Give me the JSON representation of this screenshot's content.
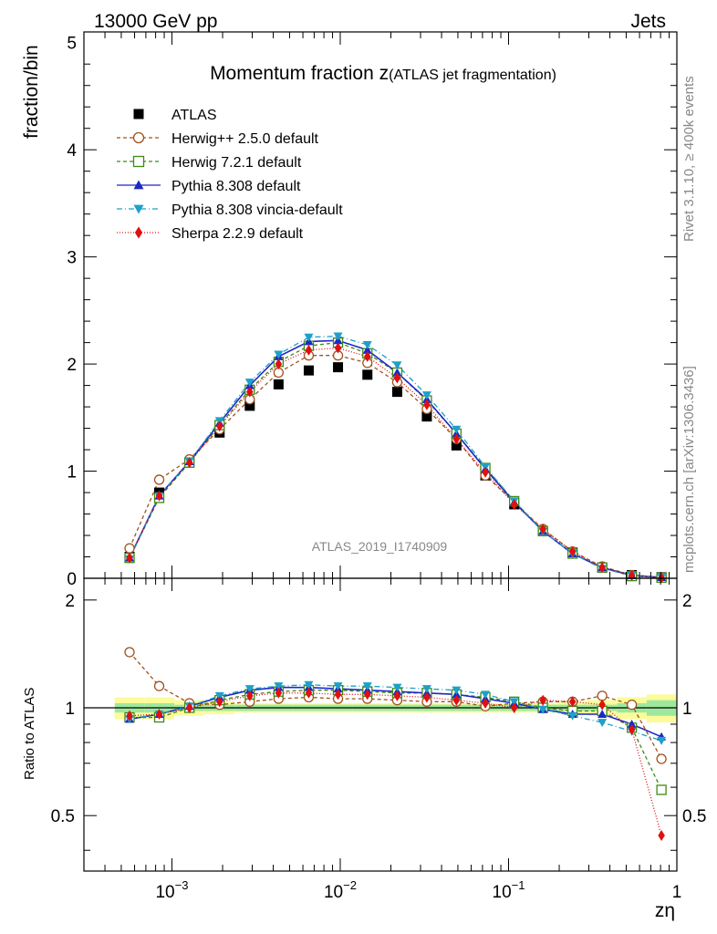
{
  "header": {
    "energy_label": "13000 GeV pp",
    "process_label": "Jets",
    "title_main": "Momentum fraction z",
    "title_sub": "(ATLAS jet fragmentation)",
    "analysis_id": "ATLAS_2019_I1740909",
    "rivet_label": "Rivet 3.1.10, ≥ 400k events",
    "mcplots_label": "mcplots.cern.ch [arXiv:1306.3436]"
  },
  "chart_data": {
    "type": "scatter",
    "xscale": "log",
    "xlim": [
      0.0003,
      1.0
    ],
    "xlabel": "zη",
    "x_tick_labels": [
      "10−3",
      "10−2",
      "10−1",
      "1"
    ],
    "x": [
      0.00056,
      0.00084,
      0.00127,
      0.00192,
      0.0029,
      0.0043,
      0.0065,
      0.0097,
      0.0145,
      0.0218,
      0.0327,
      0.049,
      0.0728,
      0.108,
      0.16,
      0.24,
      0.36,
      0.54,
      0.81
    ],
    "main": {
      "ylabel": "fraction/bin",
      "ylim": [
        0,
        5.1
      ],
      "y_tick_labels": [
        "0",
        "1",
        "2",
        "3",
        "4",
        "5"
      ],
      "series": [
        {
          "name": "ATLAS",
          "style": "data",
          "color": "#000000",
          "values": [
            0.2,
            0.8,
            1.08,
            1.36,
            1.61,
            1.81,
            1.94,
            1.97,
            1.9,
            1.74,
            1.51,
            1.24,
            0.96,
            0.69,
            0.44,
            0.24,
            0.1,
            0.03,
            0.01
          ]
        },
        {
          "name": "Herwig++ 2.5.0 default",
          "style": "open-circle",
          "color": "#a0521d",
          "dash": "4,3",
          "values": [
            0.28,
            0.92,
            1.11,
            1.39,
            1.67,
            1.92,
            2.08,
            2.08,
            2.01,
            1.83,
            1.58,
            1.3,
            0.96,
            0.71,
            0.46,
            0.25,
            0.11,
            0.03,
            0.01
          ]
        },
        {
          "name": "Herwig 7.2.1 default",
          "style": "open-square",
          "color": "#3d8a14",
          "dash": "4,3",
          "values": [
            0.19,
            0.75,
            1.08,
            1.43,
            1.76,
            2.02,
            2.17,
            2.2,
            2.1,
            1.92,
            1.66,
            1.35,
            1.03,
            0.72,
            0.44,
            0.23,
            0.1,
            0.02,
            0.006
          ]
        },
        {
          "name": "Pythia 8.308 default",
          "style": "filled-triangle-up",
          "color": "#1c28c8",
          "dash": "",
          "values": [
            0.19,
            0.77,
            1.09,
            1.45,
            1.8,
            2.07,
            2.21,
            2.22,
            2.13,
            1.92,
            1.67,
            1.35,
            1.02,
            0.71,
            0.44,
            0.23,
            0.1,
            0.027,
            0.008
          ]
        },
        {
          "name": "Pythia 8.308 vincia-default",
          "style": "filled-triangle-down",
          "color": "#1ea0c8",
          "dash": "6,3,1,3",
          "values": [
            0.18,
            0.77,
            1.09,
            1.47,
            1.83,
            2.09,
            2.25,
            2.26,
            2.18,
            1.99,
            1.71,
            1.39,
            1.04,
            0.72,
            0.44,
            0.23,
            0.09,
            0.026,
            0.007
          ]
        },
        {
          "name": "Sherpa 2.2.9 default",
          "style": "filled-diamond",
          "color": "#e01010",
          "dash": "1,2",
          "values": [
            0.19,
            0.77,
            1.08,
            1.42,
            1.74,
            2.0,
            2.13,
            2.15,
            2.07,
            1.87,
            1.62,
            1.3,
            0.99,
            0.69,
            0.46,
            0.25,
            0.1,
            0.026,
            0.004
          ]
        }
      ]
    },
    "ratio": {
      "ylabel": "Ratio to ATLAS",
      "ylim": [
        0.35,
        2.3
      ],
      "y_tick_labels": [
        "0.5",
        "1",
        "2"
      ],
      "band_inner": [
        0.03,
        0.03,
        0.02,
        0.02,
        0.02,
        0.02,
        0.02,
        0.02,
        0.02,
        0.02,
        0.02,
        0.02,
        0.02,
        0.02,
        0.02,
        0.02,
        0.02,
        0.03,
        0.05
      ],
      "band_outer": [
        0.07,
        0.07,
        0.05,
        0.04,
        0.03,
        0.03,
        0.03,
        0.03,
        0.03,
        0.03,
        0.03,
        0.03,
        0.03,
        0.03,
        0.03,
        0.04,
        0.05,
        0.07,
        0.09
      ],
      "series": [
        {
          "name": "Herwig++ 2.5.0 default",
          "values": [
            1.43,
            1.15,
            1.03,
            1.02,
            1.04,
            1.06,
            1.07,
            1.06,
            1.06,
            1.05,
            1.04,
            1.04,
            1.01,
            1.03,
            1.04,
            1.04,
            1.08,
            1.02,
            0.72
          ]
        },
        {
          "name": "Herwig 7.2.1 default",
          "values": [
            0.94,
            0.94,
            1.0,
            1.05,
            1.09,
            1.11,
            1.12,
            1.12,
            1.11,
            1.1,
            1.1,
            1.09,
            1.07,
            1.04,
            1.0,
            0.98,
            0.98,
            0.88,
            0.59
          ]
        },
        {
          "name": "Pythia 8.308 default",
          "values": [
            0.93,
            0.96,
            1.01,
            1.07,
            1.12,
            1.14,
            1.14,
            1.13,
            1.12,
            1.11,
            1.1,
            1.09,
            1.06,
            1.03,
            0.99,
            0.96,
            0.96,
            0.9,
            0.83
          ]
        },
        {
          "name": "Pythia 8.308 vincia-default",
          "values": [
            0.93,
            0.96,
            1.01,
            1.08,
            1.13,
            1.15,
            1.16,
            1.15,
            1.15,
            1.14,
            1.13,
            1.12,
            1.09,
            1.04,
            0.99,
            0.95,
            0.91,
            0.86,
            0.81
          ]
        },
        {
          "name": "Sherpa 2.2.9 default",
          "values": [
            0.95,
            0.96,
            1.0,
            1.04,
            1.08,
            1.1,
            1.1,
            1.09,
            1.09,
            1.08,
            1.07,
            1.05,
            1.03,
            1.0,
            1.05,
            1.04,
            1.02,
            0.87,
            0.44
          ]
        }
      ]
    }
  }
}
